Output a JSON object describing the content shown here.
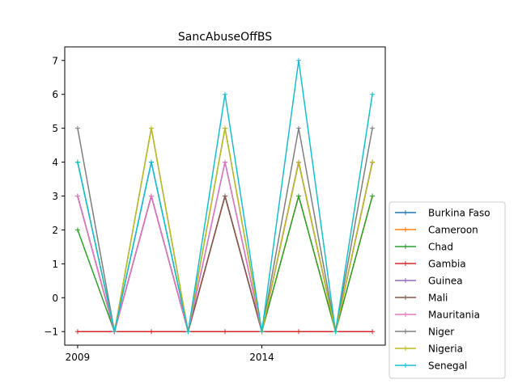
{
  "chart_data": {
    "type": "line",
    "title": "SancAbuseOffBS",
    "xlabel": "",
    "ylabel": "",
    "x": [
      2009,
      2010,
      2011,
      2012,
      2013,
      2014,
      2015,
      2016,
      2017
    ],
    "xlim": [
      2008.65,
      2017.35
    ],
    "ylim": [
      -1.4,
      7.4
    ],
    "xticks": [
      2009,
      2014
    ],
    "yticks": [
      -1,
      0,
      1,
      2,
      3,
      4,
      5,
      6,
      7
    ],
    "ytick_labels": [
      "−1",
      "0",
      "1",
      "2",
      "3",
      "4",
      "5",
      "6",
      "7"
    ],
    "marker": "+",
    "legend_position": "lower-right-outside",
    "series": [
      {
        "name": "Burkina Faso",
        "color": "#1f77b4",
        "values": [
          4,
          -1,
          4,
          -1,
          4,
          -1,
          4,
          -1,
          4
        ]
      },
      {
        "name": "Cameroon",
        "color": "#ff7f0e",
        "values": [
          3,
          -1,
          3,
          -1,
          3,
          -1,
          3,
          -1,
          3
        ]
      },
      {
        "name": "Chad",
        "color": "#2ca02c",
        "values": [
          2,
          -1,
          3,
          -1,
          3,
          -1,
          3,
          -1,
          3
        ]
      },
      {
        "name": "Gambia",
        "color": "#d62728",
        "values": [
          -1,
          -1,
          -1,
          -1,
          -1,
          -1,
          -1,
          -1,
          -1
        ]
      },
      {
        "name": "Guinea",
        "color": "#9467bd",
        "values": [
          3,
          -1,
          3,
          -1,
          3,
          -1,
          4,
          -1,
          4
        ]
      },
      {
        "name": "Mali",
        "color": "#8c564b",
        "values": [
          3,
          -1,
          3,
          -1,
          3,
          -1,
          4,
          -1,
          4
        ]
      },
      {
        "name": "Mauritania",
        "color": "#e377c2",
        "values": [
          3,
          -1,
          3,
          -1,
          4,
          -1,
          4,
          -1,
          4
        ]
      },
      {
        "name": "Niger",
        "color": "#7f7f7f",
        "values": [
          5,
          -1,
          5,
          -1,
          5,
          -1,
          5,
          -1,
          5
        ]
      },
      {
        "name": "Nigeria",
        "color": "#bcbd22",
        "values": [
          4,
          -1,
          5,
          -1,
          5,
          -1,
          4,
          -1,
          4
        ]
      },
      {
        "name": "Senegal",
        "color": "#17becf",
        "values": [
          4,
          -1,
          4,
          -1,
          6,
          -1,
          7,
          -1,
          6
        ]
      }
    ]
  }
}
